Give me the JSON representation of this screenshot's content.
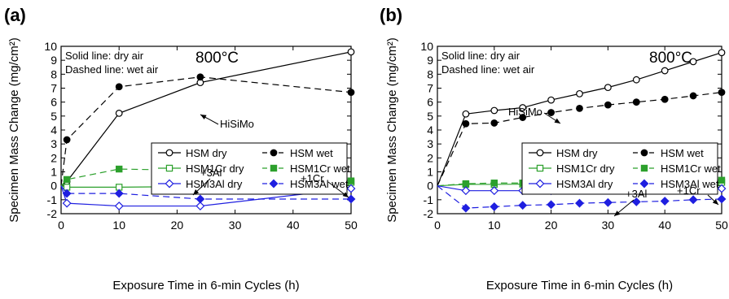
{
  "chart_data": [
    {
      "panel_label": "(a)",
      "type": "line",
      "xlabel": "Exposure Time in 6-min Cycles (h)",
      "ylabel": "Specimen Mass Change (mg/cm²)",
      "xlim": [
        0,
        50
      ],
      "ylim": [
        -2,
        10
      ],
      "xticks": [
        0,
        10,
        20,
        30,
        40,
        50
      ],
      "yticks": [
        -2,
        -1,
        0,
        1,
        2,
        3,
        4,
        5,
        6,
        7,
        8,
        9,
        10
      ],
      "grid": false,
      "legend_placement": "right-middle",
      "notes": [
        "Solid line:  dry air",
        "Dashed line:  wet air"
      ],
      "temperature": "800°C",
      "annotations": [
        {
          "text": "HiSiMo",
          "x": 30,
          "y": 6.5
        },
        {
          "text": "+3Al",
          "x": 28,
          "y": 1.6
        },
        {
          "text": "+1Cr",
          "x": 44,
          "y": 1.3
        }
      ],
      "series": [
        {
          "name": "HSM dry",
          "color": "#000000",
          "marker": "circle-open",
          "dash": false,
          "x": [
            0,
            1,
            10,
            24,
            50
          ],
          "y": [
            0,
            0.3,
            5.2,
            7.4,
            9.6
          ]
        },
        {
          "name": "HSM wet",
          "color": "#000000",
          "marker": "circle-filled",
          "dash": true,
          "x": [
            0,
            1,
            10,
            24,
            50
          ],
          "y": [
            0,
            3.3,
            7.1,
            7.8,
            6.7
          ]
        },
        {
          "name": "HSM1Cr dry",
          "color": "#2ca02c",
          "marker": "square-open",
          "dash": false,
          "x": [
            0,
            1,
            10,
            24,
            50
          ],
          "y": [
            0,
            -0.1,
            -0.1,
            -0.05,
            0.25
          ]
        },
        {
          "name": "HSM1Cr wet",
          "color": "#2ca02c",
          "marker": "square-filled",
          "dash": true,
          "x": [
            0,
            1,
            10,
            24,
            50
          ],
          "y": [
            0,
            0.45,
            1.2,
            1.1,
            0.35
          ]
        },
        {
          "name": "HSM3Al dry",
          "color": "#1f1fe0",
          "marker": "diamond-open",
          "dash": false,
          "x": [
            0,
            1,
            10,
            24,
            50
          ],
          "y": [
            0,
            -1.25,
            -1.45,
            -1.45,
            -0.2
          ]
        },
        {
          "name": "HSM3Al wet",
          "color": "#1f1fe0",
          "marker": "diamond-filled",
          "dash": true,
          "x": [
            0,
            1,
            10,
            24,
            50
          ],
          "y": [
            0,
            -0.55,
            -0.55,
            -0.95,
            -0.95
          ]
        }
      ]
    },
    {
      "panel_label": "(b)",
      "type": "line",
      "xlabel": "Exposure Time in 6-min Cycles (h)",
      "ylabel": "Specimen Mass Change (mg/cm²)",
      "xlim": [
        0,
        50
      ],
      "ylim": [
        -2,
        10
      ],
      "xticks": [
        0,
        10,
        20,
        30,
        40,
        50
      ],
      "yticks": [
        -2,
        -1,
        0,
        1,
        2,
        3,
        4,
        5,
        6,
        7,
        8,
        9,
        10
      ],
      "grid": false,
      "legend_placement": "right-middle",
      "notes": [
        "Solid line:  dry air",
        "Dashed line:  wet air"
      ],
      "temperature": "800°C",
      "annotations": [
        {
          "text": "HiSiMo",
          "x": 14.5,
          "y": 7.3
        },
        {
          "text": "+3Al",
          "x": 31,
          "y": 1.6
        },
        {
          "text": "+1Cr",
          "x": 44,
          "y": 1.3
        }
      ],
      "series": [
        {
          "name": "HSM dry",
          "color": "#000000",
          "marker": "circle-open",
          "dash": false,
          "x": [
            0,
            5,
            10,
            15,
            20,
            25,
            30,
            35,
            40,
            45,
            50
          ],
          "y": [
            0,
            5.15,
            5.4,
            5.6,
            6.15,
            6.6,
            7.05,
            7.6,
            8.25,
            8.9,
            9.55
          ]
        },
        {
          "name": "HSM wet",
          "color": "#000000",
          "marker": "circle-filled",
          "dash": true,
          "x": [
            0,
            5,
            10,
            15,
            20,
            25,
            30,
            35,
            40,
            45,
            50
          ],
          "y": [
            0,
            4.45,
            4.5,
            4.9,
            5.25,
            5.55,
            5.8,
            6.0,
            6.2,
            6.45,
            6.7
          ]
        },
        {
          "name": "HSM1Cr dry",
          "color": "#2ca02c",
          "marker": "square-open",
          "dash": false,
          "x": [
            0,
            5,
            10,
            15,
            20,
            25,
            30,
            35,
            40,
            45,
            50
          ],
          "y": [
            0,
            0.1,
            0.1,
            0.12,
            0.15,
            0.15,
            0.18,
            0.2,
            0.22,
            0.25,
            0.25
          ]
        },
        {
          "name": "HSM1Cr wet",
          "color": "#2ca02c",
          "marker": "square-filled",
          "dash": true,
          "x": [
            0,
            5,
            10,
            15,
            20,
            25,
            30,
            35,
            40,
            45,
            50
          ],
          "y": [
            0,
            0.15,
            0.2,
            0.2,
            0.25,
            0.25,
            0.3,
            0.3,
            0.35,
            0.35,
            0.4
          ]
        },
        {
          "name": "HSM3Al dry",
          "color": "#1f1fe0",
          "marker": "diamond-open",
          "dash": false,
          "x": [
            0,
            5,
            10,
            15,
            20,
            25,
            30,
            35,
            40,
            45,
            50
          ],
          "y": [
            0,
            -0.35,
            -0.35,
            -0.35,
            -0.35,
            -0.3,
            -0.3,
            -0.28,
            -0.25,
            -0.25,
            -0.2
          ]
        },
        {
          "name": "HSM3Al wet",
          "color": "#1f1fe0",
          "marker": "diamond-filled",
          "dash": true,
          "x": [
            0,
            5,
            10,
            15,
            20,
            25,
            30,
            35,
            40,
            45,
            50
          ],
          "y": [
            0,
            -1.6,
            -1.5,
            -1.4,
            -1.35,
            -1.25,
            -1.2,
            -1.15,
            -1.1,
            -1.0,
            -0.95
          ]
        }
      ]
    }
  ]
}
